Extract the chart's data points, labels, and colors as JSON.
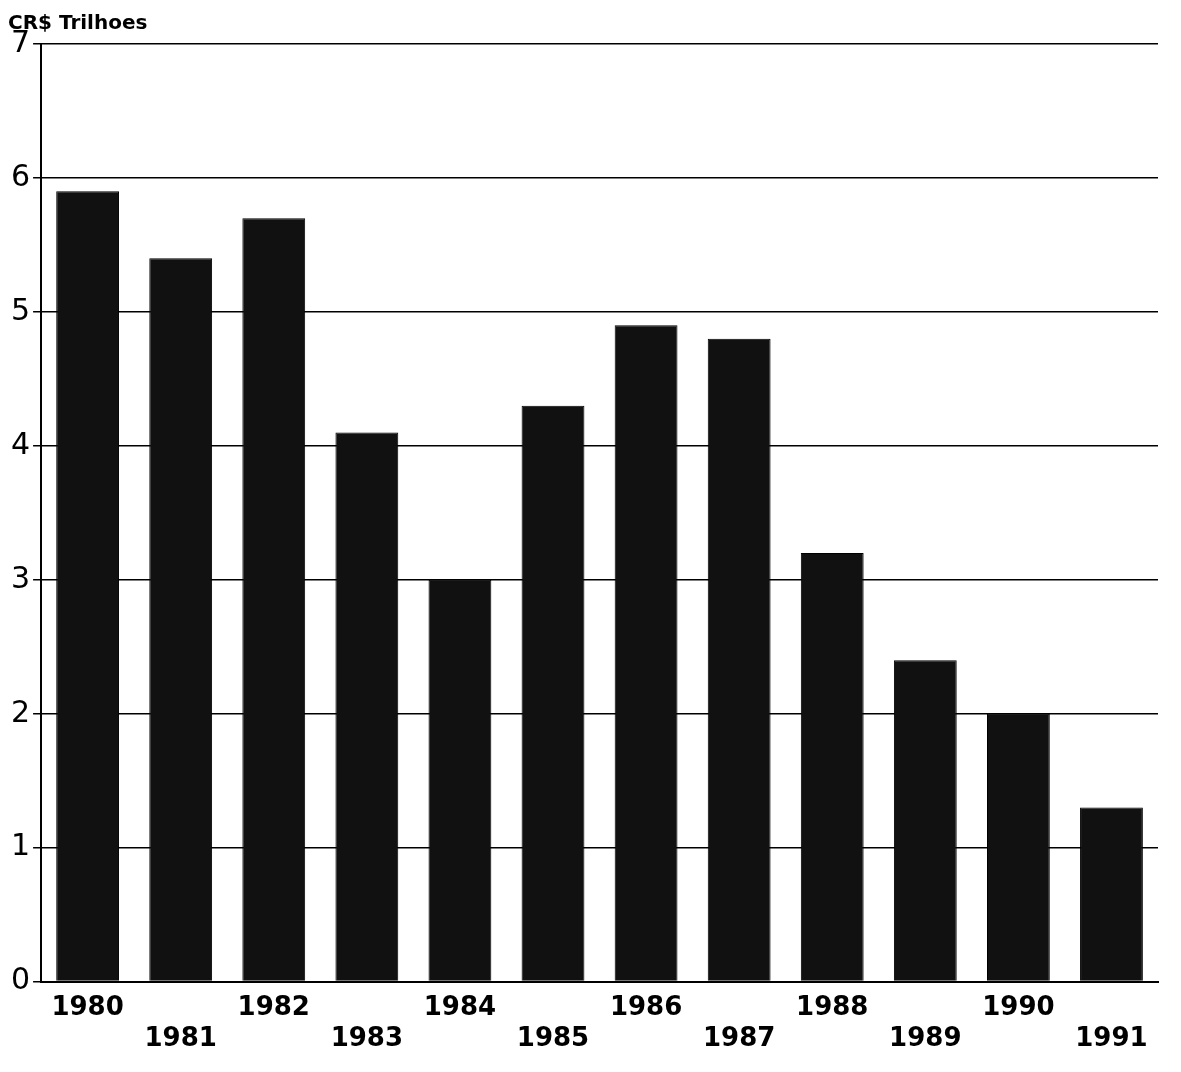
{
  "chart_data": {
    "type": "bar",
    "ylabel": "CR$ Trilhoes",
    "categories": [
      "1980",
      "1981",
      "1982",
      "1983",
      "1984",
      "1985",
      "1986",
      "1987",
      "1988",
      "1989",
      "1990",
      "1991"
    ],
    "values": [
      5.9,
      5.4,
      5.7,
      4.1,
      3.0,
      4.3,
      4.9,
      4.8,
      3.2,
      2.4,
      2.0,
      1.3
    ],
    "color": "#111111",
    "ylim": [
      0,
      7
    ],
    "yticks": [
      0,
      1,
      2,
      3,
      4,
      5,
      6,
      7
    ],
    "grid": "y",
    "legend": false
  }
}
